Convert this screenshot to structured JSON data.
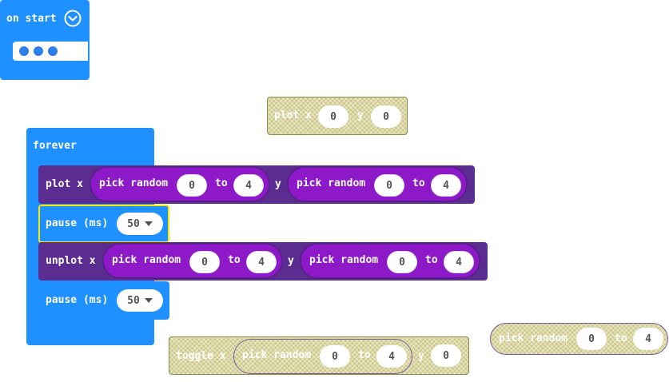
{
  "colors": {
    "basic_blue": "#1e90ff",
    "led_purple": "#5c2d91",
    "math_purple": "#8e19c9",
    "disabled_olive": "#c9c47e",
    "highlight_yellow": "#f5e900"
  },
  "on_start": {
    "label": "on start",
    "collapse_icon": "chevron-down-circle-icon"
  },
  "floating_plot": {
    "label": "plot x",
    "y_label": "y",
    "x_value": "0",
    "y_value": "0"
  },
  "forever": {
    "label": "forever",
    "plot": {
      "label": "plot x",
      "y_label": "y",
      "x_random": {
        "label": "pick random",
        "from": "0",
        "to_label": "to",
        "to": "4"
      },
      "y_random": {
        "label": "pick random",
        "from": "0",
        "to_label": "to",
        "to": "4"
      }
    },
    "pause1": {
      "label": "pause (ms)",
      "value": "50",
      "dropdown_icon": "caret-down-icon"
    },
    "unplot": {
      "label": "unplot x",
      "y_label": "y",
      "x_random": {
        "label": "pick random",
        "from": "0",
        "to_label": "to",
        "to": "4"
      },
      "y_random": {
        "label": "pick random",
        "from": "0",
        "to_label": "to",
        "to": "4"
      }
    },
    "pause2": {
      "label": "pause (ms)",
      "value": "50",
      "dropdown_icon": "caret-down-icon"
    }
  },
  "toggle": {
    "label": "toggle x",
    "y_label": "y",
    "y_value": "0",
    "x_random": {
      "label": "pick random",
      "from": "0",
      "to_label": "to",
      "to": "4"
    }
  },
  "floating_random": {
    "label": "pick random",
    "from": "0",
    "to_label": "to",
    "to": "4"
  }
}
